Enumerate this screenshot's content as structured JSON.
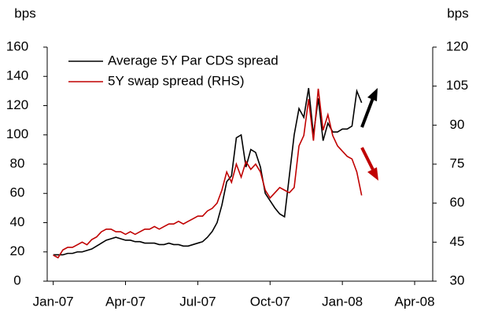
{
  "chart_data": {
    "type": "line",
    "y_label": "bps",
    "y2_label": "bps",
    "x": [
      0,
      0.2,
      0.4,
      0.6,
      0.8,
      1,
      1.2,
      1.4,
      1.6,
      1.8,
      2,
      2.2,
      2.4,
      2.6,
      2.8,
      3,
      3.2,
      3.4,
      3.6,
      3.8,
      4,
      4.2,
      4.4,
      4.6,
      4.8,
      5,
      5.2,
      5.4,
      5.6,
      5.8,
      6,
      6.2,
      6.4,
      6.6,
      6.8,
      7,
      7.2,
      7.4,
      7.6,
      7.8,
      8,
      8.2,
      8.4,
      8.6,
      8.8,
      9,
      9.2,
      9.4,
      9.6,
      9.8,
      10,
      10.2,
      10.4,
      10.6,
      10.8,
      11,
      11.2,
      11.4,
      11.6,
      11.8,
      12,
      12.2,
      12.4,
      12.6,
      12.8
    ],
    "series": [
      {
        "name": "Average 5Y Par CDS spread",
        "color": "#000000",
        "values": [
          18,
          18,
          18,
          19,
          19,
          20,
          20,
          21,
          22,
          24,
          26,
          28,
          29,
          30,
          29,
          28,
          28,
          27,
          27,
          26,
          26,
          26,
          25,
          25,
          26,
          25,
          25,
          24,
          24,
          25,
          26,
          27,
          30,
          34,
          40,
          52,
          68,
          72,
          98,
          100,
          78,
          90,
          88,
          78,
          60,
          55,
          50,
          46,
          44,
          72,
          100,
          118,
          112,
          132,
          100,
          125,
          96,
          108,
          102,
          102,
          104,
          104,
          106,
          130,
          122
        ]
      },
      {
        "name": "5Y swap spread (RHS)",
        "color": "#c00000",
        "axis": "y2",
        "values": [
          40,
          39,
          42,
          43,
          43,
          44,
          45,
          44,
          46,
          47,
          49,
          50,
          50,
          49,
          49,
          48,
          49,
          48,
          49,
          50,
          50,
          51,
          50,
          51,
          52,
          52,
          53,
          52,
          53,
          54,
          55,
          55,
          57,
          58,
          60,
          65,
          72,
          68,
          75,
          70,
          76,
          73,
          75,
          72,
          65,
          62,
          64,
          66,
          65,
          64,
          66,
          82,
          86,
          100,
          84,
          104,
          88,
          94,
          86,
          82,
          80,
          78,
          77,
          72,
          63
        ]
      }
    ],
    "xlim": [
      -0.25,
      15.75
    ],
    "xticks": [
      {
        "value": 0,
        "label": "Jan-07"
      },
      {
        "value": 3,
        "label": "Apr-07"
      },
      {
        "value": 6,
        "label": "Jul-07"
      },
      {
        "value": 9,
        "label": "Oct-07"
      },
      {
        "value": 12,
        "label": "Jan-08"
      },
      {
        "value": 15,
        "label": "Apr-08"
      }
    ],
    "ylim": [
      0,
      160
    ],
    "yticks": [
      0,
      20,
      40,
      60,
      80,
      100,
      120,
      140,
      160
    ],
    "y2lim": [
      30,
      120
    ],
    "y2ticks": [
      30,
      45,
      60,
      75,
      90,
      105,
      120
    ],
    "legend": "top-left"
  }
}
